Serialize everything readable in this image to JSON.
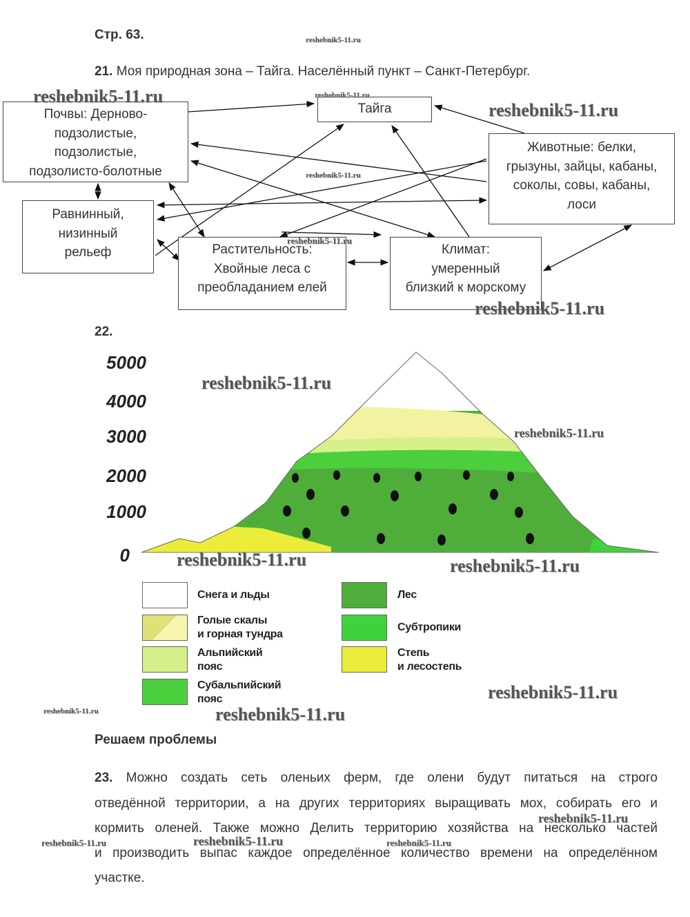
{
  "header": {
    "page": "Стр. 63."
  },
  "task21": {
    "number": "21.",
    "text": "Моя природная зона – Тайга. Населённый пункт – Санкт-Петербург.",
    "nodes": {
      "taiga": [
        "Тайга"
      ],
      "soils": [
        "Почвы: Дерново-",
        "подзолистые,",
        "подзолистые,",
        "подзолисто-болотные"
      ],
      "animals": [
        "Животные: белки,",
        "грызуны, зайцы, кабаны,",
        "соколы, совы, кабаны,",
        "лоси"
      ],
      "relief": [
        "Равнинный,",
        "низинный",
        "рельеф"
      ],
      "vegetation": [
        "Растительность:",
        "Хвойные леса с",
        "преобладанием елей"
      ],
      "climate": [
        "Климат:",
        "умеренный",
        "близкий к морскому"
      ]
    }
  },
  "task22": {
    "number": "22.",
    "altitudes": [
      5000,
      4000,
      3000,
      2000,
      1000,
      0
    ],
    "legend": [
      [
        "Снега и льды"
      ],
      [
        "Голые скалы",
        "и горная тундра"
      ],
      [
        "Альпийский",
        "пояс"
      ],
      [
        "Субальпийский",
        "пояс"
      ],
      [
        "Лес"
      ],
      [
        "Субтропики"
      ],
      [
        "Степь",
        "и лесостепь"
      ]
    ]
  },
  "section": {
    "title": "Решаем проблемы"
  },
  "task23": {
    "number": "23.",
    "lines": [
      "Можно создать сеть оленьих ферм, где олени будут питаться на строго",
      "отведённой территории, а на других территориях выращивать мох, собирать его и",
      "кормить оленей. Также можно Делить территорию хозяйства на несколько частей",
      "и производить выпас каждое определённое количество времени на определённом",
      "участке."
    ]
  },
  "watermarks": [
    "reshebnik5-11.ru",
    "reshebnik5-11.ru",
    "reshebnik5-11.ru",
    "reshebnik5-11.ru",
    "reshebnik5-11.ru",
    "reshebnik5-11.ru",
    "reshebnik5-11.ru",
    "reshebnik5-11.ru",
    "reshebnik5-11.ru",
    "reshebnik5-11.ru",
    "reshebnik5-11.ru",
    "reshebnik5-11.ru",
    "reshebnik5-11.ru",
    "reshebnik5-11.ru",
    "reshebnik5-11.ru",
    "reshebnik5-11.ru",
    "reshebnik5-11.ru",
    "reshebnik5-11.ru"
  ]
}
